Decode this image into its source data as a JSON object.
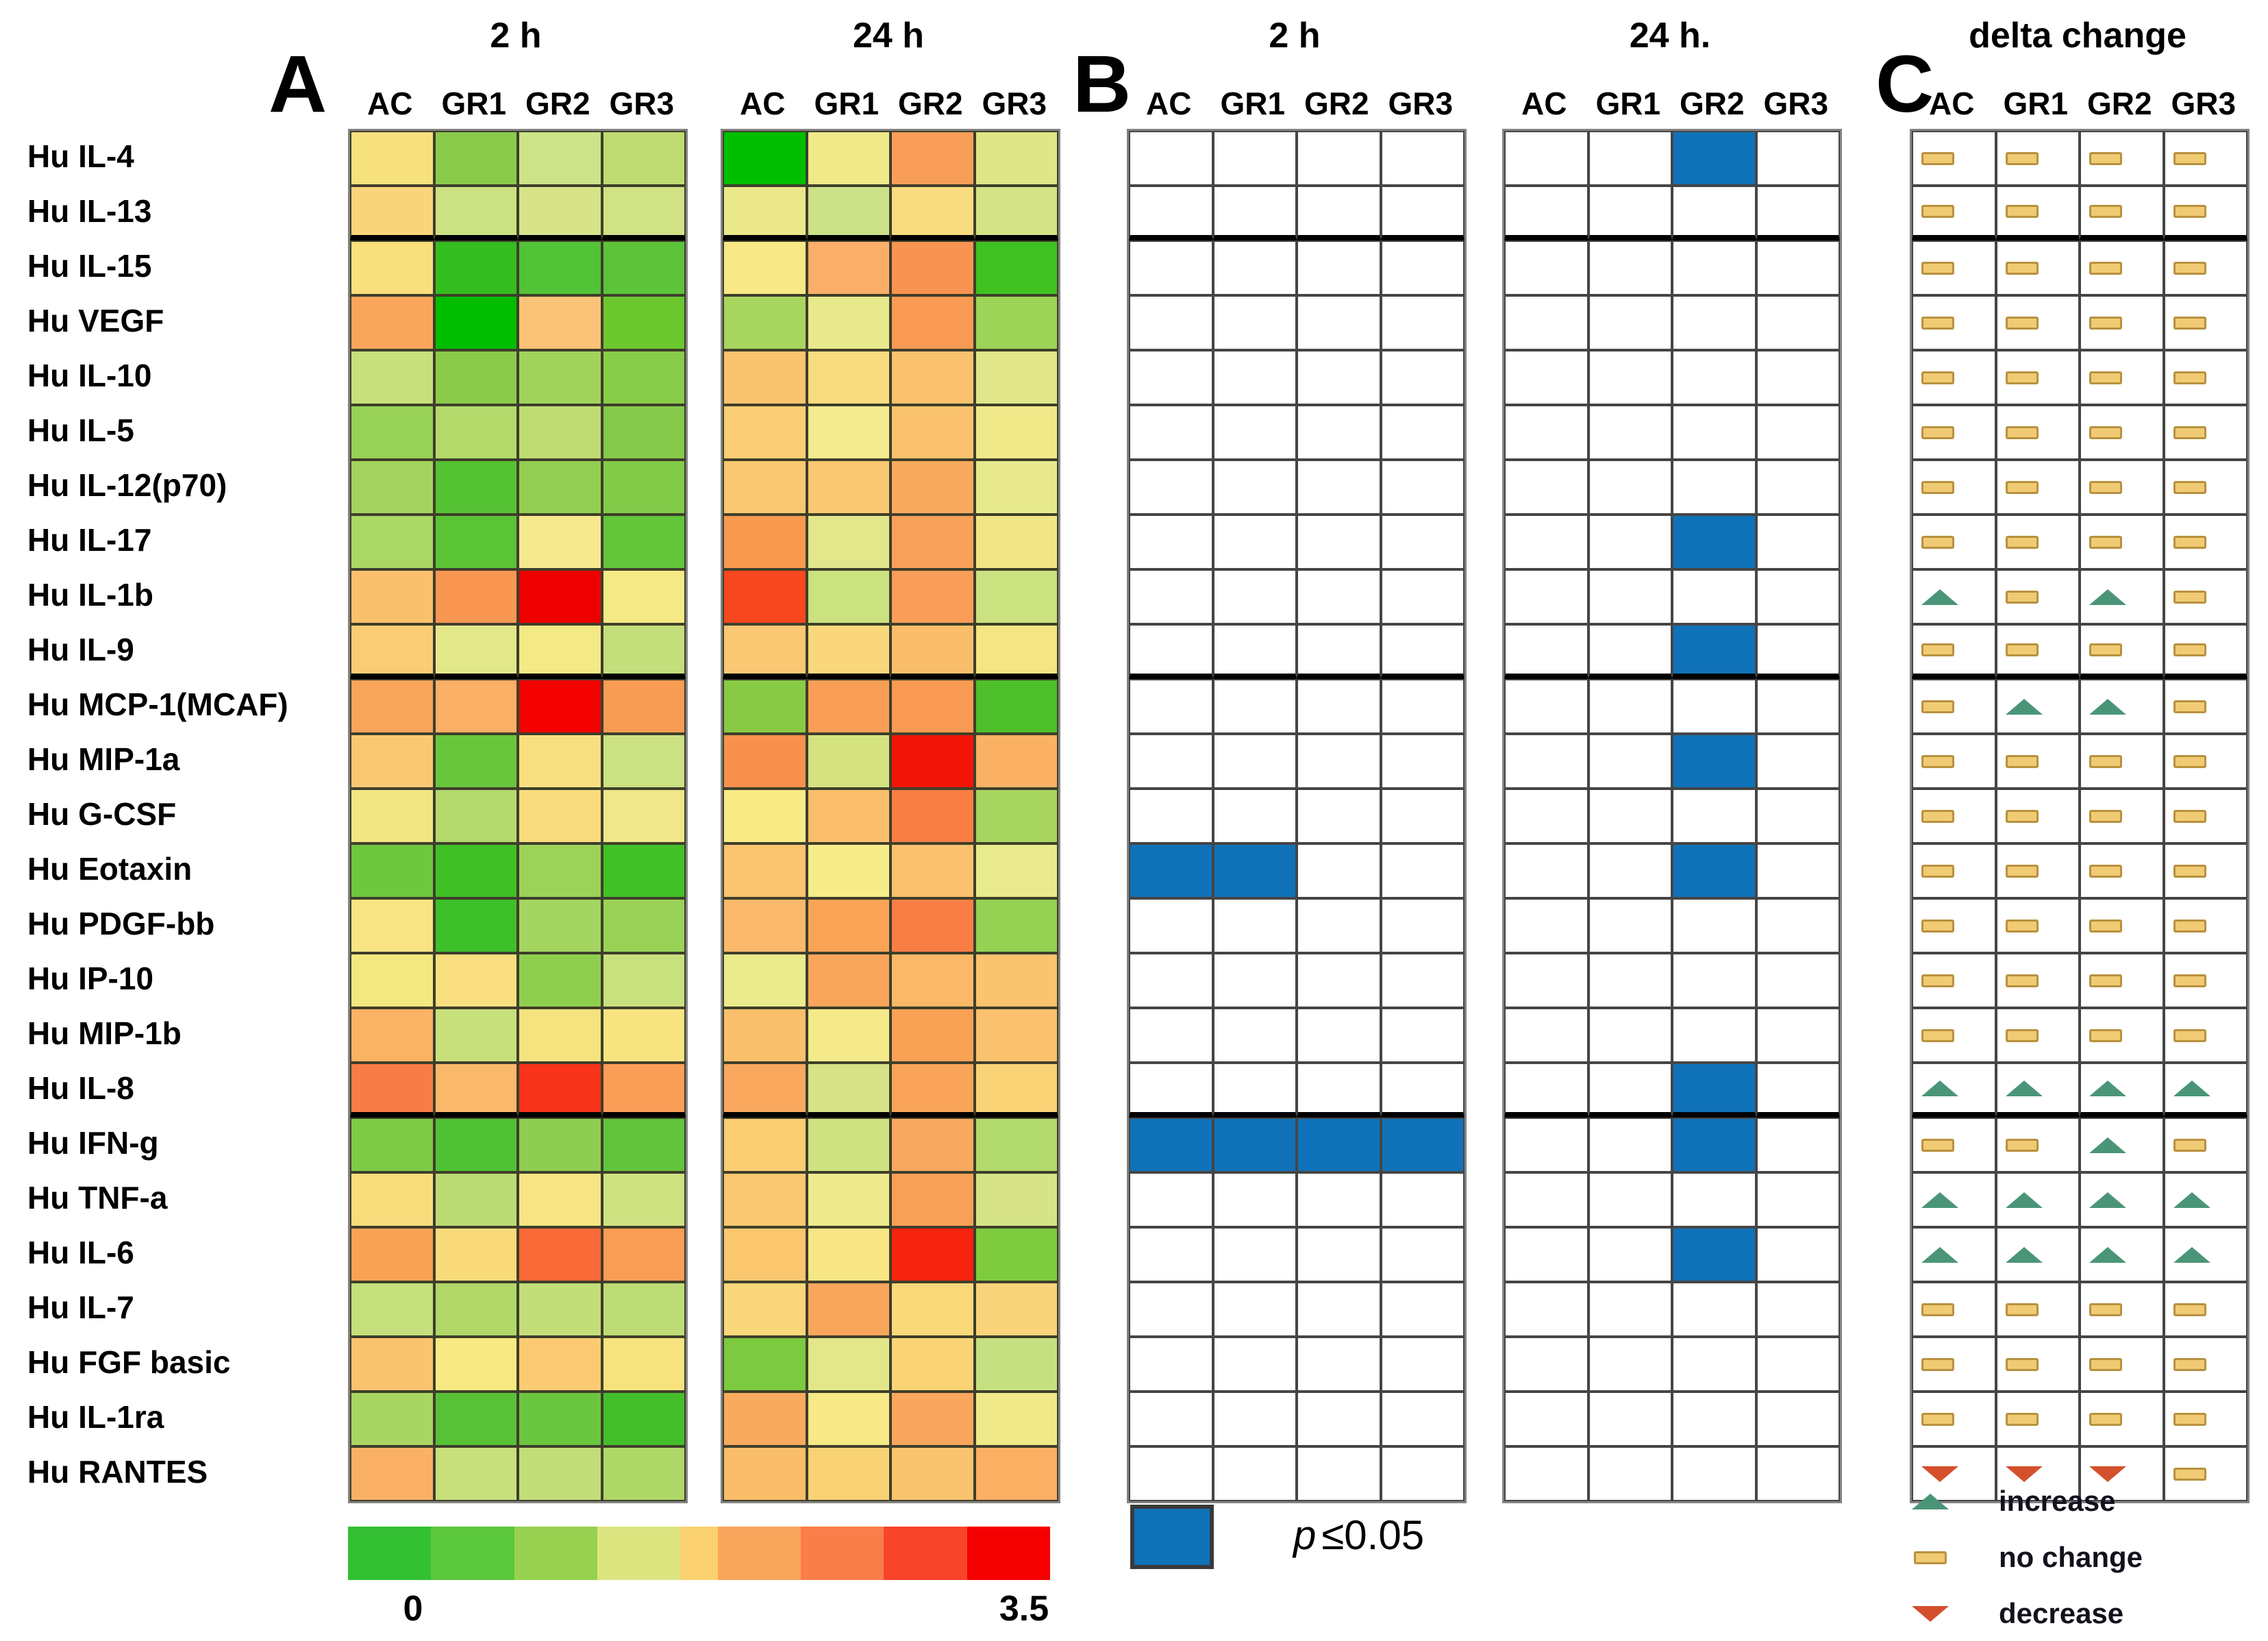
{
  "panels": {
    "a": "A",
    "b": "B",
    "c": "C"
  },
  "colors": {
    "blue": "#1072B8",
    "grid_line": "#454545",
    "heat_line": "#3E3E2A",
    "dash_fill": "#F0CB74",
    "dash_border": "#B8913F",
    "up_fill": "#4A9578",
    "up_border": "#2E6E54",
    "down_fill": "#D4502C",
    "down_border": "#9E3A1F"
  },
  "legend_b": {
    "p_label": "p",
    "p_value": "≤0.05"
  },
  "legend_c": {
    "items": [
      {
        "symbol": "up",
        "label": "increase"
      },
      {
        "symbol": "dash",
        "label": "no change"
      },
      {
        "symbol": "down",
        "label": "decrease"
      }
    ]
  },
  "chart_data": {
    "type": "heatmap",
    "title": "delta change",
    "columns": [
      "AC",
      "GR1",
      "GR2",
      "GR3"
    ],
    "heatmap_timepoints": {
      "t2h": "2 h",
      "t24h": "24 h"
    },
    "sig_timepoints": {
      "t2h": "2 h",
      "t24h": "24 h."
    },
    "delta_header": "delta change",
    "significance_note": "p ≤0.05",
    "separator_after_rows": [
      2,
      10,
      18
    ],
    "colorscale": {
      "min": 0,
      "max": 3.5,
      "min_label": "0",
      "max_label": "3.5",
      "colors": [
        "#33C133",
        "#5CC83B",
        "#97D14F",
        "#DCE57F",
        "#FBD170",
        "#FAA55C",
        "#F97E49",
        "#F8452A",
        "#F50000"
      ],
      "widths": [
        1,
        1,
        1,
        1,
        0.45,
        1,
        1,
        1,
        1
      ]
    },
    "rows": [
      {
        "label": "Hu IL-4",
        "heat_2h": [
          "#F7E17E",
          "#8BCB4B",
          "#CEE287",
          "#BEDC72"
        ],
        "heat_24h": [
          "#00BE00",
          "#EFE98A",
          "#F99E59",
          "#DEE687"
        ],
        "sig_2h": [
          false,
          false,
          false,
          false
        ],
        "sig_24h": [
          false,
          false,
          true,
          false
        ],
        "delta": [
          "dash",
          "dash",
          "dash",
          "dash"
        ]
      },
      {
        "label": "Hu IL-13",
        "heat_2h": [
          "#FAD47A",
          "#CCE182",
          "#D6E388",
          "#D0E285"
        ],
        "heat_24h": [
          "#EBE88B",
          "#CDE187",
          "#F9DC80",
          "#D4E385"
        ],
        "sig_2h": [
          false,
          false,
          false,
          false
        ],
        "sig_24h": [
          false,
          false,
          false,
          false
        ],
        "delta": [
          "dash",
          "dash",
          "dash",
          "dash"
        ]
      },
      {
        "label": "Hu IL-15",
        "heat_2h": [
          "#F8E07C",
          "#35BC1F",
          "#52C236",
          "#5DC33A"
        ],
        "heat_24h": [
          "#F8E886",
          "#FAAE67",
          "#F89451",
          "#3FC222"
        ],
        "sig_2h": [
          false,
          false,
          false,
          false
        ],
        "sig_24h": [
          false,
          false,
          false,
          false
        ],
        "delta": [
          "dash",
          "dash",
          "dash",
          "dash"
        ]
      },
      {
        "label": "Hu VEGF",
        "heat_2h": [
          "#F9A65C",
          "#00BD00",
          "#FBC377",
          "#6CC72F"
        ],
        "heat_24h": [
          "#A8D55E",
          "#E7E98C",
          "#F99A55",
          "#9CD457"
        ],
        "sig_2h": [
          false,
          false,
          false,
          false
        ],
        "sig_24h": [
          false,
          false,
          false,
          false
        ],
        "delta": [
          "dash",
          "dash",
          "dash",
          "dash"
        ]
      },
      {
        "label": "Hu IL-10",
        "heat_2h": [
          "#C8E07B",
          "#8BCB4B",
          "#A1D35C",
          "#89CC49"
        ],
        "heat_24h": [
          "#FAC36E",
          "#F9DC7D",
          "#FAC26D",
          "#E0E689"
        ],
        "sig_2h": [
          false,
          false,
          false,
          false
        ],
        "sig_24h": [
          false,
          false,
          false,
          false
        ],
        "delta": [
          "dash",
          "dash",
          "dash",
          "dash"
        ]
      },
      {
        "label": "Hu IL-5",
        "heat_2h": [
          "#97D155",
          "#B2D96A",
          "#BFDC73",
          "#85CA4A"
        ],
        "heat_24h": [
          "#FACD74",
          "#F3EB8D",
          "#FAC26D",
          "#EFE98A"
        ],
        "sig_2h": [
          false,
          false,
          false,
          false
        ],
        "sig_24h": [
          false,
          false,
          false,
          false
        ],
        "delta": [
          "dash",
          "dash",
          "dash",
          "dash"
        ]
      },
      {
        "label": "Hu IL-12(p70)",
        "heat_2h": [
          "#A4D45F",
          "#55C233",
          "#93CF52",
          "#83CA48"
        ],
        "heat_24h": [
          "#FAC870",
          "#FAC870",
          "#F9AA5E",
          "#E7E98C"
        ],
        "sig_2h": [
          false,
          false,
          false,
          false
        ],
        "sig_24h": [
          false,
          false,
          false,
          false
        ],
        "delta": [
          "dash",
          "dash",
          "dash",
          "dash"
        ]
      },
      {
        "label": "Hu IL-17",
        "heat_2h": [
          "#ABD765",
          "#5BC436",
          "#F5E88F",
          "#62C53A"
        ],
        "heat_24h": [
          "#F8994F",
          "#E2E78C",
          "#F9A05A",
          "#F2E586"
        ],
        "sig_2h": [
          false,
          false,
          false,
          false
        ],
        "sig_24h": [
          false,
          false,
          true,
          false
        ],
        "delta": [
          "dash",
          "dash",
          "dash",
          "dash"
        ]
      },
      {
        "label": "Hu IL-1b",
        "heat_2h": [
          "#FBC06E",
          "#F99752",
          "#EF0000",
          "#F4E985"
        ],
        "heat_24h": [
          "#F8471F",
          "#CCE27E",
          "#F99D58",
          "#CCE180"
        ],
        "sig_2h": [
          false,
          false,
          false,
          false
        ],
        "sig_24h": [
          false,
          false,
          false,
          false
        ],
        "delta": [
          "up",
          "dash",
          "up",
          "dash"
        ]
      },
      {
        "label": "Hu IL-9",
        "heat_2h": [
          "#FACD74",
          "#E2E88A",
          "#F3E985",
          "#C4DE7B"
        ],
        "heat_24h": [
          "#FAC873",
          "#FAD77B",
          "#FABE6B",
          "#F5E583"
        ],
        "sig_2h": [
          false,
          false,
          false,
          false
        ],
        "sig_24h": [
          false,
          false,
          true,
          false
        ],
        "delta": [
          "dash",
          "dash",
          "dash",
          "dash"
        ]
      },
      {
        "label": "Hu MCP-1(MCAF)",
        "heat_2h": [
          "#F9A55B",
          "#FAAE66",
          "#F30000",
          "#F99C53"
        ],
        "heat_24h": [
          "#89CB45",
          "#F89E55",
          "#F89A52",
          "#4EC02B"
        ],
        "sig_2h": [
          false,
          false,
          false,
          false
        ],
        "sig_24h": [
          false,
          false,
          false,
          false
        ],
        "delta": [
          "dash",
          "up",
          "up",
          "dash"
        ]
      },
      {
        "label": "Hu MIP-1a",
        "heat_2h": [
          "#FAC873",
          "#68C63C",
          "#F8DF7F",
          "#CCE181"
        ],
        "heat_24h": [
          "#F8914E",
          "#D4E380",
          "#F21507",
          "#FAB164"
        ],
        "sig_2h": [
          false,
          false,
          false,
          false
        ],
        "sig_24h": [
          false,
          false,
          true,
          false
        ],
        "delta": [
          "dash",
          "dash",
          "dash",
          "dash"
        ]
      },
      {
        "label": "Hu G-CSF",
        "heat_2h": [
          "#F2E584",
          "#B4DA6E",
          "#F9DC7D",
          "#EFE78A"
        ],
        "heat_24h": [
          "#F8EA85",
          "#FABE6C",
          "#F87E44",
          "#A8D55F"
        ],
        "sig_2h": [
          false,
          false,
          false,
          false
        ],
        "sig_24h": [
          false,
          false,
          false,
          false
        ],
        "delta": [
          "dash",
          "dash",
          "dash",
          "dash"
        ]
      },
      {
        "label": "Hu Eotaxin",
        "heat_2h": [
          "#6FC73E",
          "#40C027",
          "#9BD35A",
          "#41C028"
        ],
        "heat_24h": [
          "#FAC470",
          "#F7EC8A",
          "#FAC16E",
          "#E8EA8D"
        ],
        "sig_2h": [
          true,
          true,
          false,
          false
        ],
        "sig_24h": [
          false,
          false,
          true,
          false
        ],
        "delta": [
          "dash",
          "dash",
          "dash",
          "dash"
        ]
      },
      {
        "label": "Hu PDGF-bb",
        "heat_2h": [
          "#F8E483",
          "#3EC02A",
          "#A4D560",
          "#9AD257"
        ],
        "heat_24h": [
          "#FAB96A",
          "#F9A457",
          "#F87E46",
          "#95D153"
        ],
        "sig_2h": [
          false,
          false,
          false,
          false
        ],
        "sig_24h": [
          false,
          false,
          false,
          false
        ],
        "delta": [
          "dash",
          "dash",
          "dash",
          "dash"
        ]
      },
      {
        "label": "Hu IP-10",
        "heat_2h": [
          "#F3E780",
          "#F8DE7E",
          "#8FCF50",
          "#C9E07F"
        ],
        "heat_24h": [
          "#EBEB8C",
          "#F9A55B",
          "#FAB868",
          "#FAC36E"
        ],
        "sig_2h": [
          false,
          false,
          false,
          false
        ],
        "sig_24h": [
          false,
          false,
          false,
          false
        ],
        "delta": [
          "dash",
          "dash",
          "dash",
          "dash"
        ]
      },
      {
        "label": "Hu MIP-1b",
        "heat_2h": [
          "#FAB264",
          "#C7E07C",
          "#F5E37F",
          "#F7E481"
        ],
        "heat_24h": [
          "#FAC06C",
          "#F4EA89",
          "#F9A154",
          "#FAC26F"
        ],
        "sig_2h": [
          false,
          false,
          false,
          false
        ],
        "sig_24h": [
          false,
          false,
          false,
          false
        ],
        "delta": [
          "dash",
          "dash",
          "dash",
          "dash"
        ]
      },
      {
        "label": "Hu IL-8",
        "heat_2h": [
          "#F87C45",
          "#FAB96A",
          "#F8341A",
          "#FA9D57"
        ],
        "heat_24h": [
          "#F9A85E",
          "#D6E386",
          "#F9A458",
          "#FAD376"
        ],
        "sig_2h": [
          false,
          false,
          false,
          false
        ],
        "sig_24h": [
          false,
          false,
          true,
          false
        ],
        "delta": [
          "up",
          "up",
          "up",
          "up"
        ]
      },
      {
        "label": "Hu IFN-g",
        "heat_2h": [
          "#7ECA46",
          "#4FC233",
          "#8ECD50",
          "#62C43B"
        ],
        "heat_24h": [
          "#FACD73",
          "#CFE282",
          "#F9A85F",
          "#B2D96C"
        ],
        "sig_2h": [
          true,
          true,
          true,
          true
        ],
        "sig_24h": [
          false,
          false,
          true,
          false
        ],
        "delta": [
          "dash",
          "dash",
          "up",
          "dash"
        ]
      },
      {
        "label": "Hu TNF-a",
        "heat_2h": [
          "#F9DD7D",
          "#BBDB74",
          "#F7E584",
          "#CFE282"
        ],
        "heat_24h": [
          "#FAC870",
          "#EDE98C",
          "#F9A057",
          "#D6E487"
        ],
        "sig_2h": [
          false,
          false,
          false,
          false
        ],
        "sig_24h": [
          false,
          false,
          false,
          false
        ],
        "delta": [
          "up",
          "up",
          "up",
          "up"
        ]
      },
      {
        "label": "Hu IL-6",
        "heat_2h": [
          "#F9A254",
          "#F9DB7B",
          "#F86A38",
          "#F99D55"
        ],
        "heat_24h": [
          "#FAC76F",
          "#F8E684",
          "#F52310",
          "#7ECB3D"
        ],
        "sig_2h": [
          false,
          false,
          false,
          false
        ],
        "sig_24h": [
          false,
          false,
          true,
          false
        ],
        "delta": [
          "up",
          "up",
          "up",
          "up"
        ]
      },
      {
        "label": "Hu IL-7",
        "heat_2h": [
          "#C4DF7B",
          "#B0D768",
          "#C3DE79",
          "#BEDC75"
        ],
        "heat_24h": [
          "#FAD77A",
          "#F9A65D",
          "#FAD97B",
          "#FAD47A"
        ],
        "sig_2h": [
          false,
          false,
          false,
          false
        ],
        "sig_24h": [
          false,
          false,
          false,
          false
        ],
        "delta": [
          "dash",
          "dash",
          "dash",
          "dash"
        ]
      },
      {
        "label": "Hu FGF basic",
        "heat_2h": [
          "#FAC36E",
          "#F6E984",
          "#FACB72",
          "#F6E27F"
        ],
        "heat_24h": [
          "#7CCA3F",
          "#E2E78A",
          "#FAD377",
          "#C6E081"
        ],
        "sig_2h": [
          false,
          false,
          false,
          false
        ],
        "sig_24h": [
          false,
          false,
          false,
          false
        ],
        "delta": [
          "dash",
          "dash",
          "dash",
          "dash"
        ]
      },
      {
        "label": "Hu IL-1ra",
        "heat_2h": [
          "#A9D562",
          "#57C236",
          "#6AC63F",
          "#45BE2C"
        ],
        "heat_24h": [
          "#F9AA5F",
          "#F6E986",
          "#F9A65E",
          "#F0E98A"
        ],
        "sig_2h": [
          false,
          false,
          false,
          false
        ],
        "sig_24h": [
          false,
          false,
          false,
          false
        ],
        "delta": [
          "dash",
          "dash",
          "dash",
          "dash"
        ]
      },
      {
        "label": "Hu RANTES",
        "heat_2h": [
          "#FAB165",
          "#C7E07C",
          "#C2DE79",
          "#AFD768"
        ],
        "heat_24h": [
          "#FABD69",
          "#FAD276",
          "#FAC36E",
          "#FAAF63"
        ],
        "sig_2h": [
          false,
          false,
          false,
          false
        ],
        "sig_24h": [
          false,
          false,
          false,
          false
        ],
        "delta": [
          "down",
          "down",
          "down",
          "dash"
        ]
      }
    ]
  }
}
